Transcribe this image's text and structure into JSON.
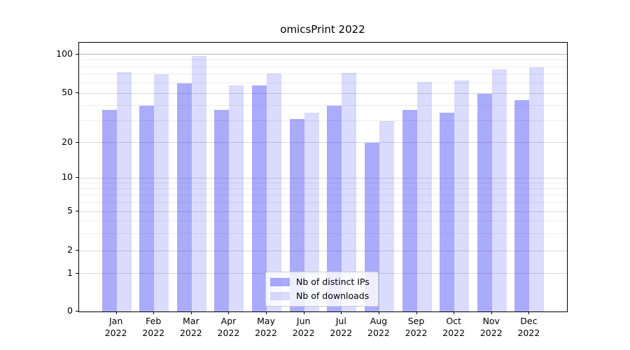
{
  "chart_data": {
    "type": "bar",
    "title": "omicsPrint 2022",
    "categories": [
      "Jan 2022",
      "Feb 2022",
      "Mar 2022",
      "Apr 2022",
      "May 2022",
      "Jun 2022",
      "Jul 2022",
      "Aug 2022",
      "Sep 2022",
      "Oct 2022",
      "Nov 2022",
      "Dec 2022"
    ],
    "series": [
      {
        "name": "Nb of distinct IPs",
        "color": "rgba(13,13,243,0.35)",
        "values": [
          37,
          40,
          60,
          37,
          58,
          31,
          40,
          20,
          37,
          35,
          50,
          44
        ]
      },
      {
        "name": "Nb of downloads",
        "color": "rgba(13,13,243,0.15)",
        "values": [
          73,
          70,
          97,
          58,
          71,
          35,
          72,
          30,
          61,
          63,
          77,
          80
        ]
      }
    ],
    "yaxis": {
      "scale": "symlog",
      "ticks": [
        0,
        1,
        2,
        5,
        10,
        20,
        50,
        100
      ],
      "minor_gridlines": [
        3,
        4,
        6,
        7,
        8,
        9,
        30,
        40,
        60,
        70,
        80,
        90
      ],
      "range_max": 120
    },
    "xlabel": "",
    "ylabel": "",
    "grid": "on",
    "legend_position": "lower-center"
  },
  "colors": {
    "grid_major": "#d9d9d9",
    "grid_minor": "#ededed",
    "grid_hundred": "#b6b6b6",
    "axis_frame": "#000000"
  }
}
